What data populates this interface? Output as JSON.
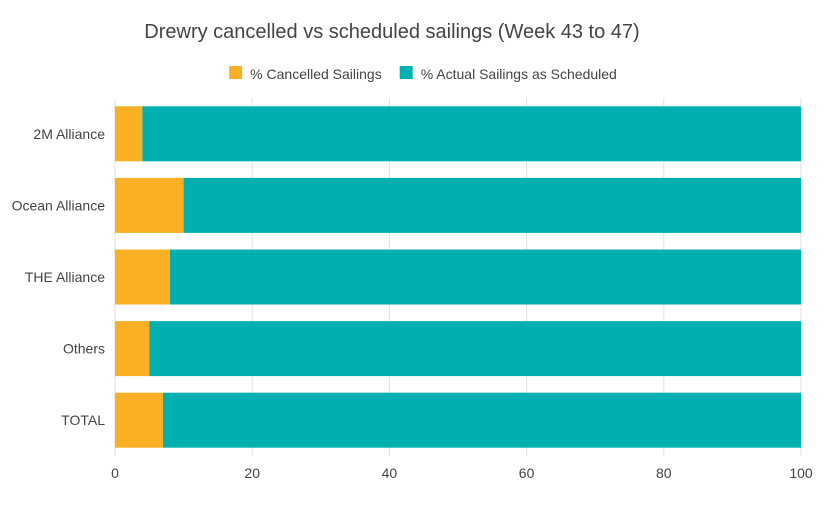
{
  "chart_data": {
    "type": "bar",
    "orientation": "horizontal",
    "stacked": true,
    "title": "Drewry cancelled vs scheduled sailings (Week 43 to 47)",
    "categories": [
      "2M Alliance",
      "Ocean Alliance",
      "THE Alliance",
      "Others",
      "TOTAL"
    ],
    "series": [
      {
        "name": "% Cancelled Sailings",
        "color": "#f9b024",
        "values": [
          4,
          10,
          8,
          5,
          7
        ]
      },
      {
        "name": "% Actual Sailings as Scheduled",
        "color": "#00b0b0",
        "values": [
          96,
          90,
          92,
          95,
          93
        ]
      }
    ],
    "xlim": [
      0,
      100
    ],
    "xticks": [
      0,
      20,
      40,
      60,
      80,
      100
    ],
    "grid": true,
    "legend": "top-center"
  }
}
